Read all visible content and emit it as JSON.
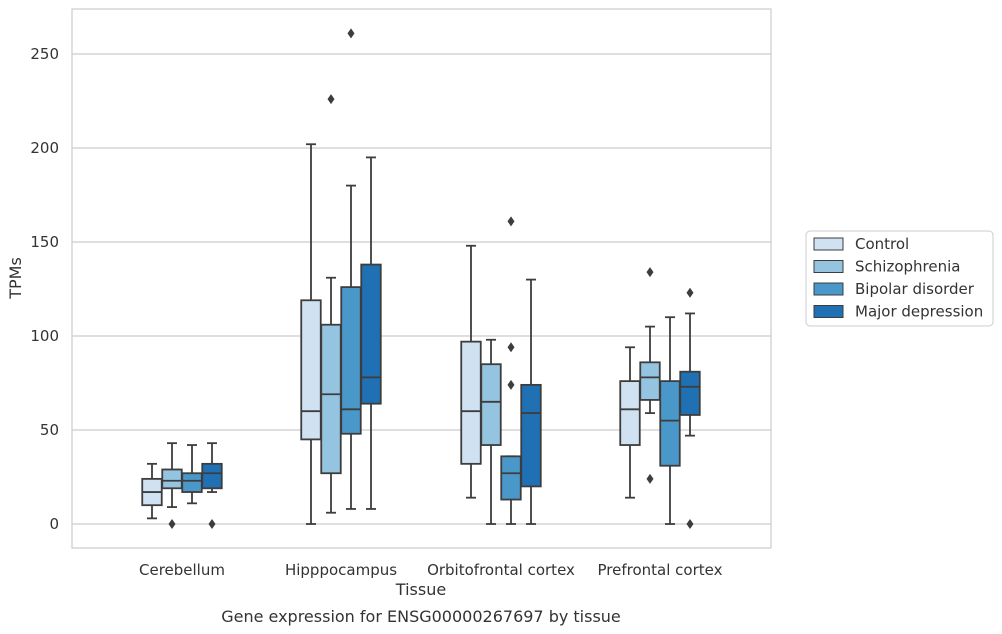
{
  "chart_data": {
    "type": "box",
    "title": "",
    "caption": "Gene expression for ENSG00000267697 by tissue",
    "xlabel": "Tissue",
    "ylabel": "TPMs",
    "ylim": [
      -12,
      275
    ],
    "yticks": [
      0,
      50,
      100,
      150,
      200,
      250
    ],
    "grid": true,
    "legend_position": "right",
    "categories": [
      "Cerebellum",
      "Hipppocampus",
      "Orbitofrontal cortex",
      "Prefrontal cortex"
    ],
    "series": [
      {
        "name": "Control",
        "color": "#d0e1f2",
        "boxes": [
          {
            "whisker_low": 3,
            "q1": 10,
            "median": 17,
            "q3": 24,
            "whisker_high": 32,
            "outliers": []
          },
          {
            "whisker_low": 0,
            "q1": 45,
            "median": 60,
            "q3": 119,
            "whisker_high": 202,
            "outliers": []
          },
          {
            "whisker_low": 14,
            "q1": 32,
            "median": 60,
            "q3": 97,
            "whisker_high": 148,
            "outliers": []
          },
          {
            "whisker_low": 14,
            "q1": 42,
            "median": 61,
            "q3": 76,
            "whisker_high": 94,
            "outliers": []
          }
        ]
      },
      {
        "name": "Schizophrenia",
        "color": "#94c4df",
        "boxes": [
          {
            "whisker_low": 9,
            "q1": 19,
            "median": 23,
            "q3": 29,
            "whisker_high": 43,
            "outliers": [
              0
            ]
          },
          {
            "whisker_low": 6,
            "q1": 27,
            "median": 69,
            "q3": 106,
            "whisker_high": 131,
            "outliers": [
              226
            ]
          },
          {
            "whisker_low": 0,
            "q1": 42,
            "median": 65,
            "q3": 85,
            "whisker_high": 98,
            "outliers": []
          },
          {
            "whisker_low": 59,
            "q1": 66,
            "median": 78,
            "q3": 86,
            "whisker_high": 105,
            "outliers": [
              134,
              24
            ]
          }
        ]
      },
      {
        "name": "Bipolar disorder",
        "color": "#4a98c9",
        "boxes": [
          {
            "whisker_low": 11,
            "q1": 17,
            "median": 23,
            "q3": 27,
            "whisker_high": 42,
            "outliers": []
          },
          {
            "whisker_low": 8,
            "q1": 48,
            "median": 61,
            "q3": 126,
            "whisker_high": 180,
            "outliers": [
              261
            ]
          },
          {
            "whisker_low": 0,
            "q1": 13,
            "median": 27,
            "q3": 36,
            "whisker_high": 36,
            "outliers": [
              161,
              94,
              74
            ]
          },
          {
            "whisker_low": 0,
            "q1": 31,
            "median": 55,
            "q3": 76,
            "whisker_high": 110,
            "outliers": []
          }
        ]
      },
      {
        "name": "Major depression",
        "color": "#2070b4",
        "boxes": [
          {
            "whisker_low": 17,
            "q1": 19,
            "median": 27,
            "q3": 32,
            "whisker_high": 43,
            "outliers": [
              0
            ]
          },
          {
            "whisker_low": 8,
            "q1": 64,
            "median": 78,
            "q3": 138,
            "whisker_high": 195,
            "outliers": []
          },
          {
            "whisker_low": 0,
            "q1": 20,
            "median": 59,
            "q3": 74,
            "whisker_high": 130,
            "outliers": []
          },
          {
            "whisker_low": 47,
            "q1": 58,
            "median": 73,
            "q3": 81,
            "whisker_high": 112,
            "outliers": [
              123,
              0
            ]
          }
        ]
      }
    ]
  }
}
